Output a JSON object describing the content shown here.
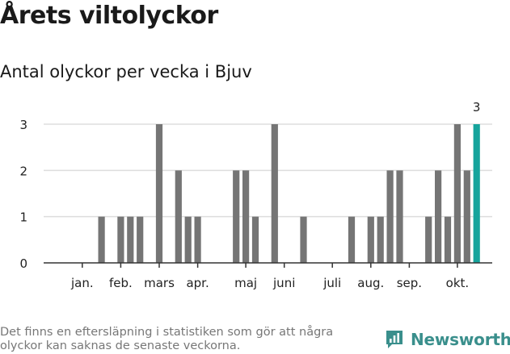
{
  "title": "Årets viltolyckor",
  "subtitle": "Antal olyckor per vecka i Bjuv",
  "footnote": "Det finns en eftersläpning i statistiken som gör att några olyckor kan saknas de senaste veckorna.",
  "brand": "Newsworthy",
  "colors": {
    "bar": "#757575",
    "highlight": "#16a49c",
    "grid": "#dddddd",
    "axis": "#333333",
    "brand": "#3a8f8c"
  },
  "chart_data": {
    "type": "bar",
    "title": "Antal olyckor per vecka i Bjuv",
    "xlabel": "",
    "ylabel": "",
    "ylim": [
      0,
      3
    ],
    "yticks": [
      0,
      1,
      2,
      3
    ],
    "grid": true,
    "x_tick_labels": [
      "jan.",
      "feb.",
      "mars",
      "apr.",
      "maj",
      "juni",
      "juli",
      "aug.",
      "sep.",
      "okt."
    ],
    "x_tick_weeks": [
      3,
      7,
      11,
      15,
      20,
      24,
      29,
      33,
      37,
      42
    ],
    "weeks": [
      1,
      2,
      3,
      4,
      5,
      6,
      7,
      8,
      9,
      10,
      11,
      12,
      13,
      14,
      15,
      16,
      17,
      18,
      19,
      20,
      21,
      22,
      23,
      24,
      25,
      26,
      27,
      28,
      29,
      30,
      31,
      32,
      33,
      34,
      35,
      36,
      37,
      38,
      39,
      40,
      41,
      42,
      43,
      44
    ],
    "values": [
      0,
      0,
      0,
      0,
      1,
      0,
      1,
      1,
      1,
      0,
      3,
      0,
      2,
      1,
      1,
      0,
      0,
      0,
      2,
      2,
      1,
      0,
      3,
      0,
      0,
      1,
      0,
      0,
      0,
      0,
      1,
      0,
      1,
      1,
      2,
      2,
      0,
      0,
      1,
      2,
      1,
      3,
      2,
      3
    ],
    "highlight_last": true,
    "annotations": [
      {
        "week": 44,
        "text": "3"
      }
    ]
  }
}
